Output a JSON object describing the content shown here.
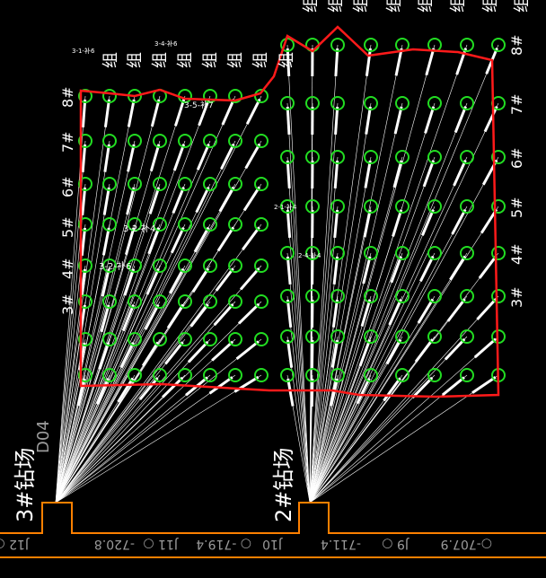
{
  "colors": {
    "background": "#000000",
    "boundary": "#ff1a1a",
    "hole_marker": "#22dd22",
    "borehole": "#ffffff",
    "roadway": "#ff8000",
    "station_text": "#9a9a9a"
  },
  "drill_sites": [
    {
      "label": "3#钻场",
      "code": "D04"
    },
    {
      "label": "2#钻场"
    }
  ],
  "stations": [
    {
      "name": "J12"
    },
    {
      "name": "J11",
      "elevation": "-720.8"
    },
    {
      "name": "J10",
      "elevation": "-719.4"
    },
    {
      "name": "J9",
      "elevation": "-711.4"
    },
    {
      "elevation": "-707.9"
    }
  ],
  "row_labels_left": [
    "8#",
    "7#",
    "6#",
    "5#",
    "4#",
    "3#"
  ],
  "row_labels_right": [
    "8#",
    "7#",
    "6#",
    "5#",
    "4#",
    "3#"
  ],
  "group_label": "组",
  "annotations": [
    "3-1-补6",
    "3-4-补6",
    "3-5-补7",
    "3-2-补4",
    "3-2-补6",
    "2-1-补4",
    "2-4-补4"
  ]
}
